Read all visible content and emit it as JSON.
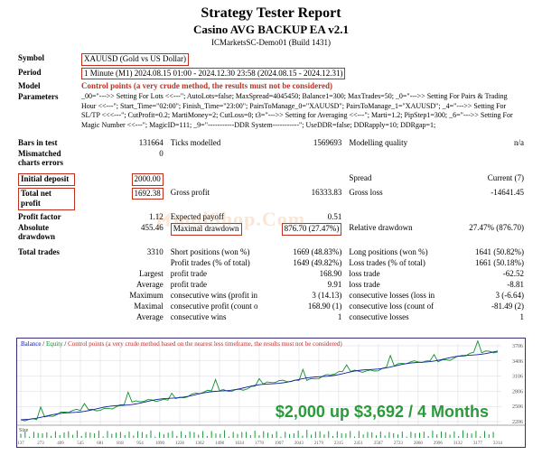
{
  "header": {
    "title": "Strategy Tester Report",
    "subtitle": "Casino AVG BACKUP EA v2.1",
    "build": "ICMarketsSC-Demo01 (Build 1431)"
  },
  "rows": {
    "symbol_label": "Symbol",
    "symbol_value": "XAUUSD (Gold vs US Dollar)",
    "period_label": "Period",
    "period_value": "1 Minute (M1) 2024.08.15 01:00 - 2024.12.30 23:58 (2024.08.15 - 2024.12.31)",
    "model_label": "Model",
    "model_value": "Control points (a very crude method, the results must not be considered)",
    "params_label": "Parameters",
    "params_value": "_00=\"--->> Setting For Lots <<---\"; AutoLots=false; MaxSpread=4045450;  Balance1=300; MaxTrades=50; _0=\"--->> Setting For Pairs & Trading Hour <<---\";  Start_Time=\"02:00\";  Finish_Time=\"23:00\";  PairsToManage_0=\"XAUUSD\"; PairsToManage_1=\"XAUUSD\"; _4=\"--->> Setting For SL/TP <<<---\"; CutProfit=0.2; MartiMoney=2; CutLoss=0; t3=\"--->> Setting for Averaging <<---\"; Marti=1.2; PipStep1=300; _6=\"--->> Setting For Magic Number <<---\"; MagicID=111;  _9=\"-----------DDR System-----------\"; UseDDR=false;  DDRapply=10; DDRgap=1;"
  },
  "stats": {
    "bars_in_test_l": "Bars in test",
    "bars_in_test": "131664",
    "ticks_modelled_l": "Ticks modelled",
    "ticks_modelled": "1569693",
    "modelling_q_l": "Modelling quality",
    "modelling_q": "n/a",
    "mismatch_l": "Mismatched charts errors",
    "mismatch": "0",
    "init_dep_l": "Initial deposit",
    "init_dep": "2000.00",
    "spread_l": "Spread",
    "spread": "Current (7)",
    "net_profit_l": "Total net profit",
    "net_profit": "1692.38",
    "gross_profit_l": "Gross profit",
    "gross_profit": "16333.83",
    "gross_loss_l": "Gross loss",
    "gross_loss": "-14641.45",
    "profit_factor_l": "Profit factor",
    "profit_factor": "1.12",
    "exp_payoff_l": "Expected payoff",
    "exp_payoff": "0.51",
    "abs_dd_l": "Absolute drawdown",
    "abs_dd": "455.46",
    "max_dd_l": "Maximal drawdown",
    "max_dd": "876.70 (27.47%)",
    "rel_dd_l": "Relative drawdown",
    "rel_dd": "27.47% (876.70)",
    "total_trades_l": "Total trades",
    "total_trades": "3310",
    "short_pos_l": "Short positions (won %)",
    "short_pos": "1669 (48.83%)",
    "long_pos_l": "Long positions (won %)",
    "long_pos": "1641 (50.82%)",
    "profit_trades_l": "Profit trades (% of total)",
    "profit_trades": "1649 (49.82%)",
    "loss_trades_l": "Loss trades (% of total)",
    "loss_trades": "1661 (50.18%)",
    "largest_l": "Largest",
    "largest_pt_l": "profit trade",
    "largest_pt": "168.90",
    "largest_lt_l": "loss trade",
    "largest_lt": "-62.52",
    "avg_l": "Average",
    "avg_pt_l": "profit trade",
    "avg_pt": "9.91",
    "avg_lt_l": "loss trade",
    "avg_lt": "-8.81",
    "max_l": "Maximum",
    "max_cw_l": "consecutive wins (profit in money)",
    "max_cw": "3 (14.13)",
    "max_cl_l": "consecutive losses (loss in money)",
    "max_cl": "3 (-6.64)",
    "maxp_l": "Maximal",
    "maxp_cw_l": "consecutive profit (count of wins)",
    "maxp_cw": "168.90 (1)",
    "maxp_cl_l": "consecutive loss (count of losses)",
    "maxp_cl": "-81.49 (2)",
    "avgc_l": "Average",
    "avgc_cw_l": "consecutive wins",
    "avgc_cw": "1",
    "avgc_cl_l": "consecutive losses",
    "avgc_cl": "1"
  },
  "chart": {
    "legend_balance": "Balance",
    "legend_equity": "Equity",
    "legend_cp": "Control points (a very crude method based on the nearest less timeframe, the results must not be considered)",
    "y_labels": [
      "3706",
      "3406",
      "3106",
      "2806",
      "2506",
      "2206"
    ],
    "x_labels": [
      "137",
      "273",
      "409",
      "545",
      "681",
      "818",
      "954",
      "1090",
      "1226",
      "1362",
      "1498",
      "1634",
      "1770",
      "1907",
      "2043",
      "2179",
      "2315",
      "2451",
      "2587",
      "2723",
      "2860",
      "2996",
      "3132",
      "3177",
      "3314"
    ],
    "big_text": "$2,000 up $3,692 / 4 Months",
    "size_label": "Size",
    "colors": {
      "balance": "#1020a0",
      "equity": "#109030",
      "grid": "#d8d8e0",
      "axis": "#707080",
      "spike": "#1a9a3a"
    }
  },
  "watermark": "mqlShop.Com"
}
